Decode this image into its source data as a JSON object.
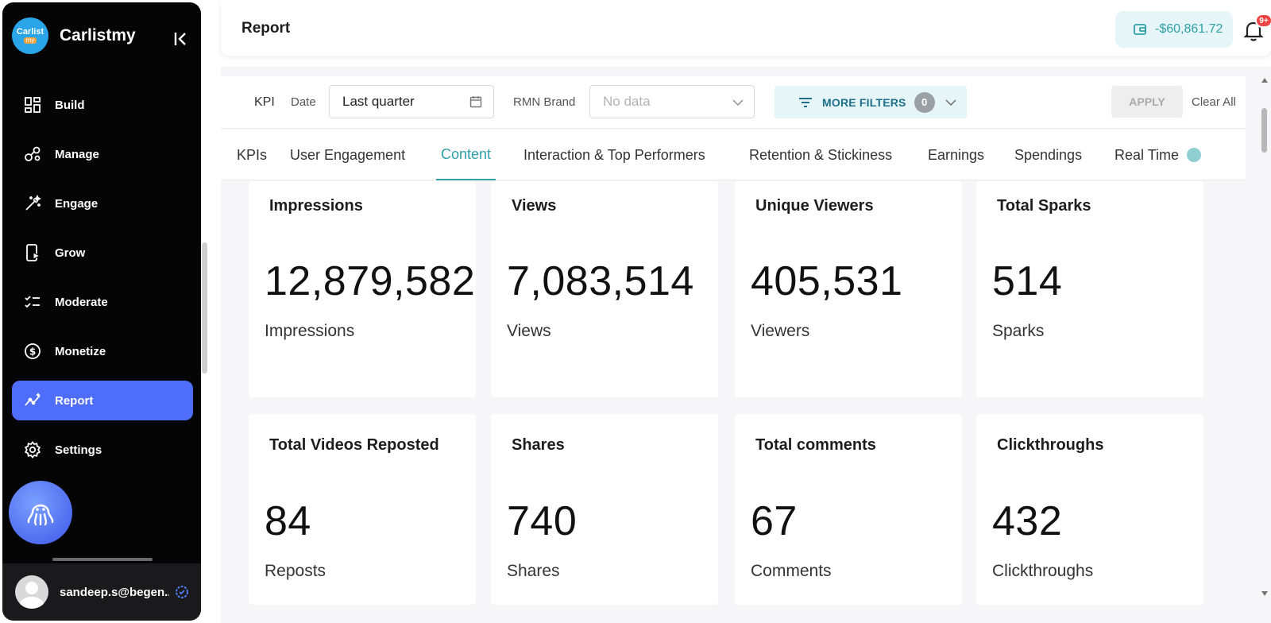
{
  "sidebar": {
    "brand": {
      "logo_line1": "Carlist",
      "logo_line2": "my",
      "name": "Carlistmy"
    },
    "items": [
      {
        "label": "Build",
        "icon": "grid-icon"
      },
      {
        "label": "Manage",
        "icon": "nodes-icon"
      },
      {
        "label": "Engage",
        "icon": "magic-wand-icon"
      },
      {
        "label": "Grow",
        "icon": "mobile-play-icon"
      },
      {
        "label": "Moderate",
        "icon": "checklist-icon"
      },
      {
        "label": "Monetize",
        "icon": "dollar-circle-icon"
      },
      {
        "label": "Report",
        "icon": "trend-line-icon",
        "active": true
      },
      {
        "label": "Settings",
        "icon": "gear-icon"
      }
    ],
    "user": {
      "email": "sandeep.s@begen..."
    }
  },
  "header": {
    "title": "Report",
    "wallet_amount": "-$60,861.72",
    "notification_badge": "9+"
  },
  "filters": {
    "kpi_label": "KPI",
    "date_label": "Date",
    "date_value": "Last quarter",
    "rmn_label": "RMN Brand",
    "rmn_placeholder": "No data",
    "more_filters_label": "MORE FILTERS",
    "more_filters_count": "0",
    "apply_label": "APPLY",
    "clear_label": "Clear All"
  },
  "tabs": [
    {
      "label": "KPIs"
    },
    {
      "label": "User Engagement"
    },
    {
      "label": "Content",
      "active": true
    },
    {
      "label": "Interaction & Top Performers"
    },
    {
      "label": "Retention & Stickiness"
    },
    {
      "label": "Earnings"
    },
    {
      "label": "Spendings"
    },
    {
      "label": "Real Time"
    }
  ],
  "cards": [
    {
      "title": "Impressions",
      "value": "12,879,582",
      "unit": "Impressions"
    },
    {
      "title": "Views",
      "value": "7,083,514",
      "unit": "Views"
    },
    {
      "title": "Unique Viewers",
      "value": "405,531",
      "unit": "Viewers"
    },
    {
      "title": "Total Sparks",
      "value": "514",
      "unit": "Sparks"
    },
    {
      "title": "Total Videos Reposted",
      "value": "84",
      "unit": "Reposts"
    },
    {
      "title": "Shares",
      "value": "740",
      "unit": "Shares"
    },
    {
      "title": "Total comments",
      "value": "67",
      "unit": "Comments"
    },
    {
      "title": "Clickthroughs",
      "value": "432",
      "unit": "Clickthroughs"
    }
  ],
  "colors": {
    "accent": "#2f9fa8",
    "active_nav": "#4f6dfb",
    "sidebar_bg": "#050506"
  }
}
